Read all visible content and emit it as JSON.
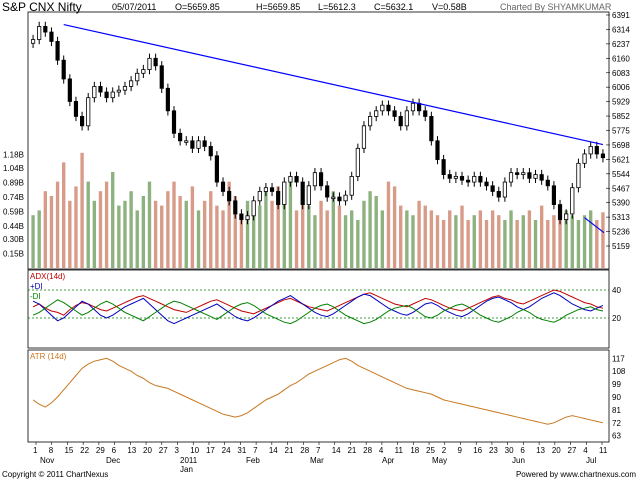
{
  "header": {
    "title": "S&P CNX Nifty",
    "date": "05/07/2011",
    "open": "O=5659.85",
    "high": "H=5659.85",
    "low": "L=5612.3",
    "close": "C=5632.1",
    "volume": "V=0.58B",
    "credit": "Charted By SHYAMKUMAR"
  },
  "footer": {
    "copyright": "Copyright © 2011 ChartNexus",
    "powered": "Powered by www.chartnexus.com"
  },
  "colors": {
    "up_volume": "#8db27f",
    "down_volume": "#d89b88",
    "trendline": "#0000ff",
    "adx": "#c00000",
    "plus_di": "#0000c0",
    "minus_di": "#008000",
    "atr": "#c87820"
  },
  "chart_data": [
    {
      "type": "candlestick",
      "panel": "price",
      "title": "S&P CNX Nifty",
      "y_ticks": [
        "6391",
        "6314",
        "6237",
        "6160",
        "6083",
        "6006",
        "5929",
        "5852",
        "5775",
        "5698",
        "5621",
        "5544",
        "5467",
        "5390",
        "5313",
        "5236",
        "5159"
      ],
      "ylim": [
        5120,
        6391
      ],
      "close_path": [
        6260,
        6330,
        6300,
        6250,
        6150,
        6050,
        5930,
        5850,
        5800,
        5950,
        6010,
        5980,
        5950,
        5980,
        5990,
        6010,
        6040,
        6080,
        6100,
        6160,
        6120,
        6000,
        5880,
        5760,
        5720,
        5720,
        5680,
        5720,
        5690,
        5640,
        5500,
        5450,
        5400,
        5330,
        5300,
        5320,
        5400,
        5450,
        5470,
        5450,
        5380,
        5500,
        5530,
        5500,
        5380,
        5480,
        5550,
        5480,
        5420,
        5420,
        5400,
        5430,
        5530,
        5680,
        5800,
        5850,
        5880,
        5910,
        5880,
        5850,
        5800,
        5880,
        5920,
        5880,
        5850,
        5720,
        5620,
        5540,
        5520,
        5530,
        5510,
        5500,
        5530,
        5500,
        5480,
        5450,
        5420,
        5500,
        5550,
        5540,
        5550,
        5520,
        5540,
        5510,
        5480,
        5380,
        5300,
        5330,
        5470,
        5600,
        5650,
        5690,
        5650,
        5630
      ],
      "volume_ticks": [
        "1.18B",
        "1.04B",
        "0.89B",
        "0.74B",
        "0.59B",
        "0.44B",
        "0.30B",
        "0.15B"
      ],
      "volume_max": 1.25,
      "volume": [
        0.55,
        0.6,
        0.8,
        0.75,
        0.9,
        1.1,
        0.7,
        0.85,
        1.2,
        0.9,
        0.7,
        0.8,
        0.9,
        1.0,
        0.65,
        0.7,
        0.8,
        0.6,
        0.75,
        0.9,
        0.7,
        0.65,
        0.8,
        0.9,
        0.75,
        0.7,
        0.85,
        0.6,
        0.7,
        0.8,
        0.65,
        0.6,
        0.9,
        0.75,
        0.55,
        0.7,
        0.6,
        0.65,
        0.8,
        0.7,
        0.85,
        0.75,
        0.9,
        0.6,
        0.7,
        0.65,
        0.55,
        0.7,
        0.6,
        0.8,
        0.65,
        0.55,
        0.6,
        0.5,
        0.7,
        0.8,
        0.75,
        0.6,
        0.9,
        0.85,
        0.65,
        0.6,
        0.55,
        0.7,
        0.65,
        0.6,
        0.55,
        0.5,
        0.6,
        0.55,
        0.65,
        0.5,
        0.55,
        0.6,
        0.5,
        0.6,
        0.55,
        0.5,
        0.6,
        0.5,
        0.55,
        0.6,
        0.5,
        0.65,
        0.5,
        0.55,
        0.5,
        0.6,
        0.55,
        0.5,
        0.55,
        0.6,
        0.5,
        0.58
      ],
      "x_tick_labels": [
        "1",
        "8",
        "15",
        "22",
        "29",
        "6",
        "13",
        "20",
        "27",
        "3",
        "10",
        "17",
        "24",
        "31",
        "7",
        "14",
        "21",
        "28",
        "7",
        "14",
        "21",
        "28",
        "4",
        "11",
        "18",
        "25",
        "2",
        "9",
        "16",
        "23",
        "30",
        "6",
        "13",
        "20",
        "27",
        "4",
        "11"
      ],
      "month_labels": [
        "Nov",
        "Dec",
        "2011",
        "Jan",
        "Feb",
        "Mar",
        "Apr",
        "May",
        "Jun",
        "Jul"
      ],
      "trendline": {
        "start": 6340,
        "end": 5700
      },
      "support_segment": {
        "start": 5310,
        "end": 5230
      }
    },
    {
      "type": "line",
      "panel": "ADX (14d)",
      "legend": [
        "ADX(14d)",
        "+DI",
        "-DI"
      ],
      "y_ticks": [
        "40",
        "20"
      ],
      "ylim": [
        0,
        50
      ],
      "series": [
        {
          "name": "ADX(14d)",
          "values": [
            28,
            30,
            27,
            25,
            24,
            22,
            26,
            29,
            31,
            30,
            28,
            26,
            25,
            27,
            29,
            31,
            33,
            35,
            36,
            34,
            32,
            30,
            28,
            26,
            25,
            24,
            26,
            28,
            30,
            32,
            33,
            31,
            29,
            27,
            25,
            24,
            23,
            25,
            27,
            29,
            31,
            33,
            34,
            32,
            30,
            28,
            27,
            26,
            25,
            27,
            29,
            31,
            33,
            35,
            37,
            38,
            36,
            34,
            32,
            30,
            29,
            28,
            30,
            32,
            34,
            33,
            31,
            29,
            27,
            26,
            25,
            27,
            29,
            31,
            33,
            35,
            36,
            34,
            33,
            31,
            30,
            32,
            34,
            36,
            38,
            40,
            39,
            37,
            35,
            33,
            31,
            30,
            28,
            27
          ]
        },
        {
          "name": "+DI",
          "values": [
            32,
            30,
            26,
            22,
            18,
            20,
            24,
            28,
            32,
            30,
            26,
            22,
            20,
            22,
            25,
            28,
            30,
            32,
            34,
            30,
            26,
            22,
            18,
            16,
            18,
            20,
            22,
            24,
            26,
            28,
            30,
            27,
            24,
            21,
            19,
            18,
            20,
            23,
            26,
            29,
            32,
            34,
            36,
            33,
            30,
            27,
            24,
            22,
            21,
            23,
            26,
            29,
            32,
            35,
            37,
            36,
            33,
            30,
            27,
            25,
            23,
            22,
            24,
            27,
            30,
            31,
            29,
            26,
            24,
            22,
            21,
            23,
            26,
            29,
            32,
            34,
            35,
            33,
            31,
            28,
            26,
            28,
            31,
            34,
            36,
            38,
            36,
            33,
            30,
            28,
            26,
            25,
            27,
            29
          ]
        },
        {
          "name": "-DI",
          "values": [
            22,
            24,
            27,
            30,
            33,
            31,
            28,
            25,
            22,
            24,
            27,
            30,
            32,
            30,
            27,
            24,
            22,
            20,
            18,
            21,
            24,
            27,
            30,
            32,
            31,
            29,
            27,
            25,
            23,
            21,
            19,
            22,
            25,
            28,
            30,
            31,
            29,
            26,
            23,
            21,
            19,
            17,
            16,
            18,
            21,
            24,
            27,
            29,
            30,
            28,
            25,
            22,
            20,
            18,
            16,
            17,
            19,
            22,
            25,
            27,
            28,
            29,
            27,
            24,
            21,
            20,
            22,
            25,
            27,
            29,
            30,
            28,
            25,
            22,
            20,
            18,
            17,
            19,
            21,
            24,
            26,
            24,
            21,
            19,
            18,
            17,
            19,
            22,
            24,
            26,
            27,
            28,
            26,
            25
          ]
        }
      ]
    },
    {
      "type": "line",
      "panel": "ATR (14d)",
      "legend": [
        "ATR (14d)"
      ],
      "y_ticks": [
        "117",
        "108",
        "99",
        "90",
        "81",
        "72",
        "63"
      ],
      "ylim": [
        60,
        120
      ],
      "series": [
        {
          "name": "ATR (14d)",
          "values": [
            88,
            85,
            83,
            86,
            90,
            95,
            100,
            105,
            110,
            113,
            115,
            116,
            117,
            115,
            112,
            110,
            108,
            105,
            103,
            100,
            98,
            97,
            96,
            94,
            92,
            90,
            88,
            86,
            84,
            82,
            80,
            78,
            77,
            76,
            77,
            79,
            82,
            85,
            88,
            90,
            92,
            95,
            98,
            100,
            103,
            106,
            108,
            110,
            112,
            114,
            116,
            117,
            115,
            112,
            110,
            108,
            106,
            104,
            102,
            100,
            98,
            96,
            95,
            94,
            93,
            92,
            90,
            88,
            87,
            86,
            85,
            84,
            83,
            82,
            81,
            80,
            79,
            78,
            77,
            76,
            75,
            74,
            73,
            72,
            71,
            72,
            74,
            76,
            77,
            76,
            75,
            74,
            73,
            72
          ]
        }
      ]
    }
  ]
}
